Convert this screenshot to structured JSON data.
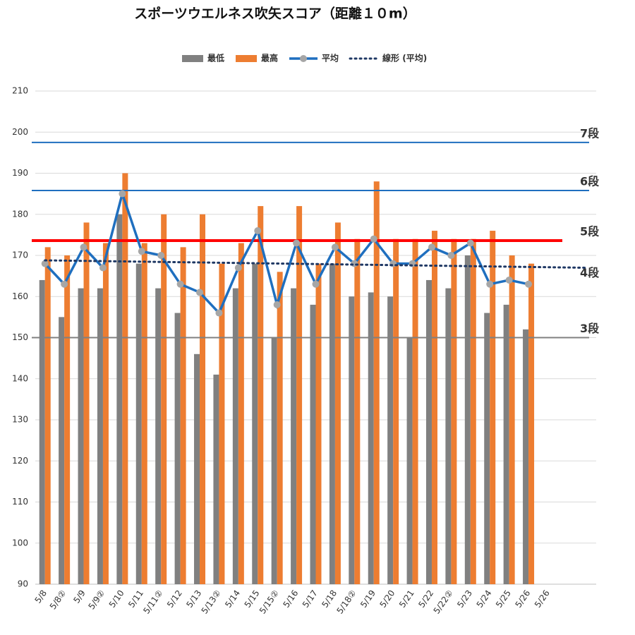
{
  "chart_data": {
    "type": "bar",
    "title": "スポーツウエルネス吹矢スコア（距離１０m）",
    "categories": [
      "5/8",
      "5/8②",
      "5/9",
      "5/9②",
      "5/10",
      "5/11",
      "5/11②",
      "5/12",
      "5/13",
      "5/13②",
      "5/14",
      "5/15",
      "5/15②",
      "5/16",
      "5/17",
      "5/18",
      "5/18②",
      "5/19",
      "5/20",
      "5/21",
      "5/22",
      "5/22②",
      "5/23",
      "5/24",
      "5/25",
      "5/26",
      "5/26",
      null,
      null
    ],
    "series": [
      {
        "name": "最低",
        "color": "#808080",
        "kind": "bar",
        "values": [
          164,
          155,
          162,
          162,
          180,
          168,
          162,
          156,
          146,
          141,
          162,
          168,
          150,
          162,
          158,
          168,
          160,
          161,
          160,
          150,
          164,
          162,
          170,
          156,
          158,
          152,
          null,
          null,
          null
        ]
      },
      {
        "name": "最高",
        "color": "#ed7d31",
        "kind": "bar",
        "values": [
          172,
          170,
          178,
          173,
          190,
          173,
          180,
          172,
          180,
          168,
          173,
          182,
          166,
          182,
          168,
          178,
          174,
          188,
          174,
          174,
          176,
          174,
          174,
          176,
          170,
          168,
          null,
          null,
          null
        ]
      },
      {
        "name": "平均",
        "color": "#1f6fbf",
        "kind": "line",
        "values": [
          168,
          163,
          172,
          167,
          185,
          171,
          170,
          163,
          161,
          156,
          167,
          176,
          158,
          173,
          163,
          172,
          168,
          174,
          168,
          168,
          172,
          170,
          173,
          163,
          164,
          163,
          null,
          null,
          null
        ]
      },
      {
        "name": "線形 (平均)",
        "color": "#1f3864",
        "kind": "trend",
        "values": [
          168.8,
          168.74,
          168.67,
          168.61,
          168.54,
          168.48,
          168.41,
          168.35,
          168.29,
          168.22,
          168.16,
          168.09,
          168.03,
          167.96,
          167.9,
          167.84,
          167.77,
          167.71,
          167.64,
          167.58,
          167.51,
          167.45,
          167.39,
          167.32,
          167.26,
          167.19,
          167.13,
          167.06,
          167.0
        ]
      }
    ],
    "reference_lines": [
      {
        "label": "7段",
        "value": 197.5,
        "color": "#1f6fbf",
        "label_color": "#222"
      },
      {
        "label": "6段",
        "value": 185.8,
        "color": "#1f6fbf",
        "label_color": "#222"
      },
      {
        "label": "5段",
        "value": 173.6,
        "color": "#ff0000",
        "label_color": "#1f6fbf"
      },
      {
        "label": "4段",
        "value": 163.6,
        "color": null,
        "label_color": "#222"
      },
      {
        "label": "3段",
        "value": 150,
        "color": "#808080",
        "label_color": "#222"
      }
    ],
    "ylim": [
      90,
      210
    ],
    "yticks": [
      90,
      100,
      110,
      120,
      130,
      140,
      150,
      160,
      170,
      180,
      190,
      200,
      210
    ],
    "grid": true
  }
}
